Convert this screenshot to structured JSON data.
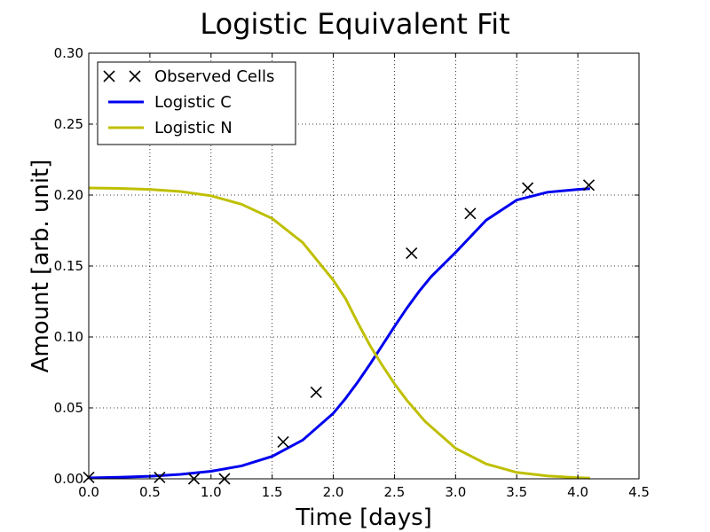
{
  "chart_data": {
    "type": "line",
    "title": "Logistic Equivalent Fit",
    "xlabel": "Time [days]",
    "ylabel": "Amount [arb. unit]",
    "xlim": [
      0.0,
      4.5
    ],
    "ylim": [
      0.0,
      0.3
    ],
    "x_ticks": [
      "0.0",
      "0.5",
      "1.0",
      "1.5",
      "2.0",
      "2.5",
      "3.0",
      "3.5",
      "4.0",
      "4.5"
    ],
    "y_ticks": [
      "0.00",
      "0.05",
      "0.10",
      "0.15",
      "0.20",
      "0.25",
      "0.30"
    ],
    "grid": true,
    "legend_position": "top-left",
    "series": [
      {
        "name": "Observed Cells",
        "kind": "scatter",
        "marker": "x",
        "color": "#000000",
        "points": [
          {
            "x": 0.0,
            "y": 0.001
          },
          {
            "x": 0.58,
            "y": 0.001
          },
          {
            "x": 0.86,
            "y": 0.0
          },
          {
            "x": 1.11,
            "y": 0.0
          },
          {
            "x": 1.59,
            "y": 0.026
          },
          {
            "x": 1.86,
            "y": 0.061
          },
          {
            "x": 2.64,
            "y": 0.159
          },
          {
            "x": 3.12,
            "y": 0.187
          },
          {
            "x": 3.59,
            "y": 0.205
          },
          {
            "x": 4.09,
            "y": 0.207
          }
        ]
      },
      {
        "name": "Logistic C",
        "kind": "line",
        "color": "#0000ee",
        "points": [
          {
            "x": 0.0,
            "y": 0.0006
          },
          {
            "x": 0.25,
            "y": 0.0011
          },
          {
            "x": 0.5,
            "y": 0.0018
          },
          {
            "x": 0.75,
            "y": 0.0031
          },
          {
            "x": 1.0,
            "y": 0.0053
          },
          {
            "x": 1.25,
            "y": 0.0091
          },
          {
            "x": 1.5,
            "y": 0.0158
          },
          {
            "x": 1.75,
            "y": 0.0273
          },
          {
            "x": 2.0,
            "y": 0.0462
          },
          {
            "x": 2.1,
            "y": 0.0566
          },
          {
            "x": 2.2,
            "y": 0.0682
          },
          {
            "x": 2.3,
            "y": 0.0808
          },
          {
            "x": 2.4,
            "y": 0.094
          },
          {
            "x": 2.5,
            "y": 0.1073
          },
          {
            "x": 2.6,
            "y": 0.1201
          },
          {
            "x": 2.7,
            "y": 0.1319
          },
          {
            "x": 2.8,
            "y": 0.1425
          },
          {
            "x": 3.0,
            "y": 0.1596
          },
          {
            "x": 3.25,
            "y": 0.1823
          },
          {
            "x": 3.5,
            "y": 0.1965
          },
          {
            "x": 3.75,
            "y": 0.202
          },
          {
            "x": 4.0,
            "y": 0.204
          },
          {
            "x": 4.1,
            "y": 0.2045
          }
        ]
      },
      {
        "name": "Logistic N",
        "kind": "line",
        "color": "#bfbf00",
        "points": [
          {
            "x": 0.0,
            "y": 0.205
          },
          {
            "x": 0.25,
            "y": 0.2047
          },
          {
            "x": 0.5,
            "y": 0.204
          },
          {
            "x": 0.75,
            "y": 0.2025
          },
          {
            "x": 1.0,
            "y": 0.1995
          },
          {
            "x": 1.25,
            "y": 0.1935
          },
          {
            "x": 1.5,
            "y": 0.1835
          },
          {
            "x": 1.75,
            "y": 0.1665
          },
          {
            "x": 2.0,
            "y": 0.14
          },
          {
            "x": 2.1,
            "y": 0.127
          },
          {
            "x": 2.2,
            "y": 0.11
          },
          {
            "x": 2.3,
            "y": 0.094
          },
          {
            "x": 2.4,
            "y": 0.08
          },
          {
            "x": 2.5,
            "y": 0.067
          },
          {
            "x": 2.6,
            "y": 0.0555
          },
          {
            "x": 2.75,
            "y": 0.0405
          },
          {
            "x": 3.0,
            "y": 0.0215
          },
          {
            "x": 3.25,
            "y": 0.0105
          },
          {
            "x": 3.5,
            "y": 0.0045
          },
          {
            "x": 3.75,
            "y": 0.002
          },
          {
            "x": 4.0,
            "y": 0.0008
          },
          {
            "x": 4.1,
            "y": 0.0005
          }
        ]
      }
    ]
  }
}
